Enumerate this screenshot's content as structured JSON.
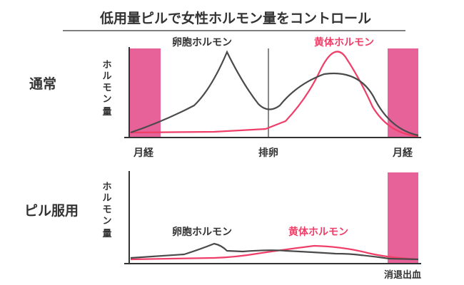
{
  "title": "低用量ピルで女性ホルモン量をコントロール",
  "colors": {
    "text": "#333333",
    "estrogen": "#4a4a4a",
    "progesterone": "#ef3f68",
    "period_band": "#e8629a",
    "axis": "#333333",
    "ovulation_line": "#888888"
  },
  "normal": {
    "label": "通常",
    "y_axis_label": "ホルモン量",
    "estrogen_label": "卵胞ホルモン",
    "progesterone_label": "黄体ホルモン",
    "x_tick_start": "月経",
    "x_tick_mid": "排卵",
    "x_tick_end": "月経"
  },
  "pill": {
    "label": "ピル服用",
    "y_axis_label": "ホルモン量",
    "estrogen_label": "卵胞ホルモン",
    "progesterone_label": "黄体ホルモン",
    "x_tick_end": "消退出血"
  }
}
